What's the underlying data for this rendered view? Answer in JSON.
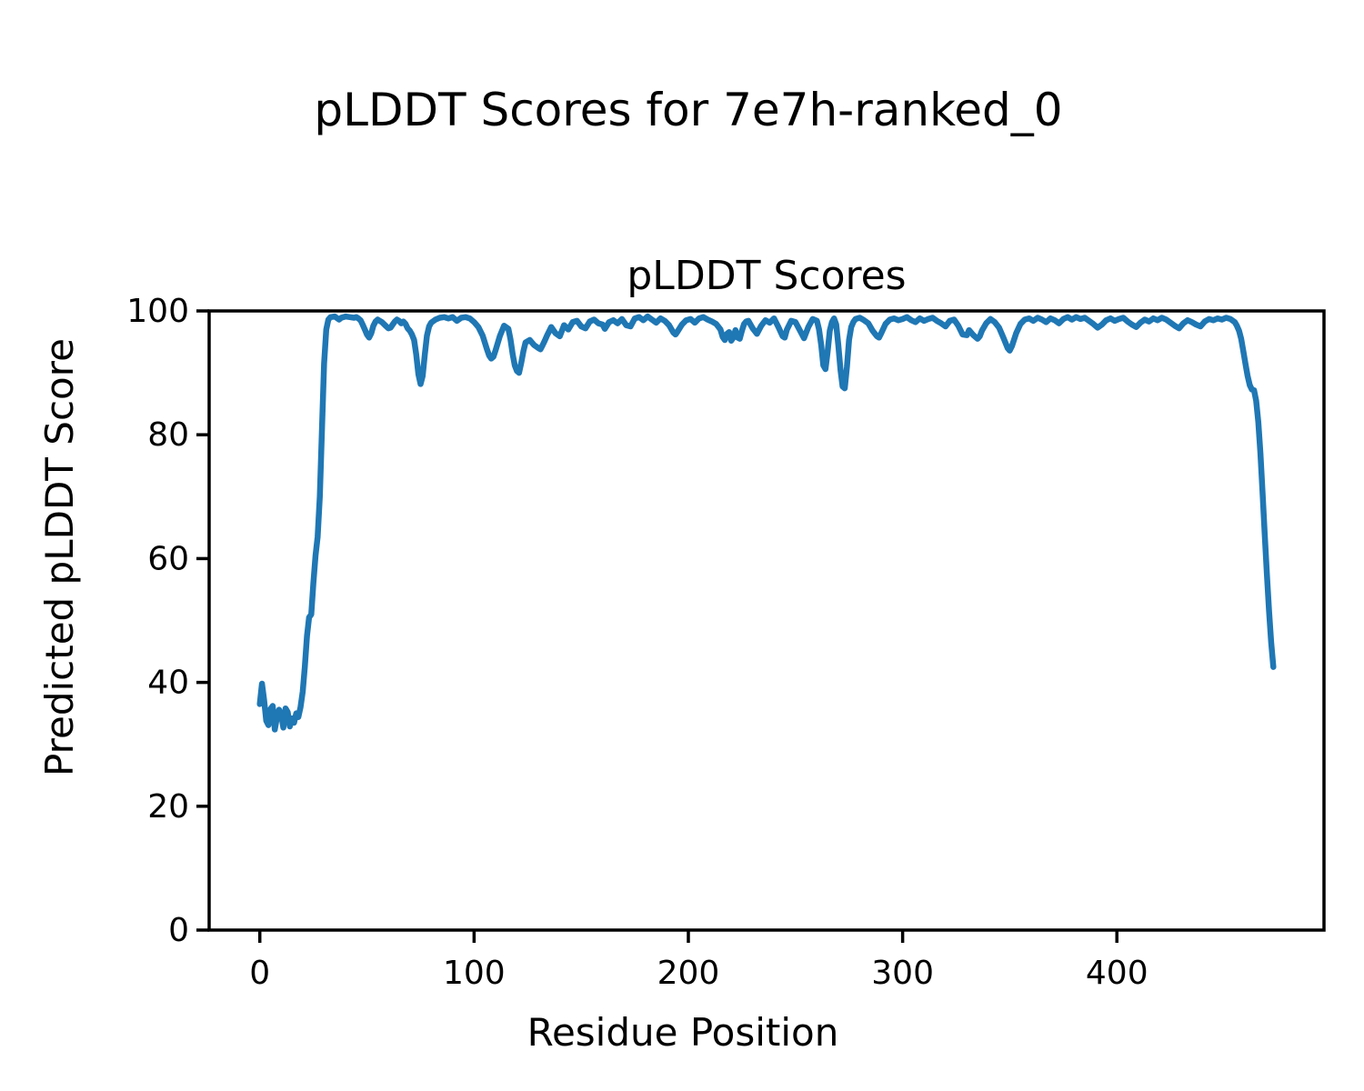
{
  "chart_data": {
    "type": "line",
    "suptitle": "pLDDT Scores for 7e7h-ranked_0",
    "title": "pLDDT Scores",
    "xlabel": "Residue Position",
    "ylabel": "Predicted pLDDT Score",
    "xlim": [
      -23.65,
      496.65
    ],
    "ylim": [
      0,
      100
    ],
    "xticks": [
      0,
      100,
      200,
      300,
      400
    ],
    "yticks": [
      0,
      20,
      40,
      60,
      80,
      100
    ],
    "grid": false,
    "legend": "none",
    "background": "#ffffff",
    "axis_color": "#000000",
    "series": [
      {
        "name": "pLDDT",
        "color": "#1f77b4",
        "line_width": 6.5,
        "points": [
          [
            0,
            36.5
          ],
          [
            1,
            39.8
          ],
          [
            2,
            37.2
          ],
          [
            3,
            33.8
          ],
          [
            4,
            33.1
          ],
          [
            5,
            35.7
          ],
          [
            6,
            36.2
          ],
          [
            7,
            32.4
          ],
          [
            8,
            34.4
          ],
          [
            9,
            35.6
          ],
          [
            10,
            34.7
          ],
          [
            11,
            32.7
          ],
          [
            12,
            35.8
          ],
          [
            13,
            35.2
          ],
          [
            14,
            32.9
          ],
          [
            15,
            34.2
          ],
          [
            16,
            33.5
          ],
          [
            17,
            35.0
          ],
          [
            18,
            34.4
          ],
          [
            19,
            36.0
          ],
          [
            20,
            38.5
          ],
          [
            21,
            42.5
          ],
          [
            22,
            47.5
          ],
          [
            23,
            50.5
          ],
          [
            24,
            51.0
          ],
          [
            25,
            56.0
          ],
          [
            26,
            60.5
          ],
          [
            27,
            63.5
          ],
          [
            28,
            70.0
          ],
          [
            29,
            81.0
          ],
          [
            30,
            91.5
          ],
          [
            31,
            97.0
          ],
          [
            32,
            98.6
          ],
          [
            33,
            99.0
          ],
          [
            35,
            99.1
          ],
          [
            37,
            98.6
          ],
          [
            38,
            98.9
          ],
          [
            40,
            99.1
          ],
          [
            42,
            99.0
          ],
          [
            44,
            98.9
          ],
          [
            45,
            99.0
          ],
          [
            46,
            98.8
          ],
          [
            47,
            98.5
          ],
          [
            48,
            97.8
          ],
          [
            49,
            97.0
          ],
          [
            50,
            96.2
          ],
          [
            51,
            95.7
          ],
          [
            52,
            96.4
          ],
          [
            53,
            97.6
          ],
          [
            54,
            98.3
          ],
          [
            55,
            98.6
          ],
          [
            57,
            98.2
          ],
          [
            59,
            97.5
          ],
          [
            60,
            97.2
          ],
          [
            61,
            97.3
          ],
          [
            62,
            97.8
          ],
          [
            63,
            98.3
          ],
          [
            64,
            98.6
          ],
          [
            65,
            98.4
          ],
          [
            66,
            98.0
          ],
          [
            67,
            98.3
          ],
          [
            68,
            97.9
          ],
          [
            69,
            97.2
          ],
          [
            70,
            96.8
          ],
          [
            71,
            96.2
          ],
          [
            72,
            95.3
          ],
          [
            73,
            93.0
          ],
          [
            74,
            89.8
          ],
          [
            75,
            88.2
          ],
          [
            76,
            89.5
          ],
          [
            77,
            93.0
          ],
          [
            78,
            96.0
          ],
          [
            79,
            97.5
          ],
          [
            80,
            98.1
          ],
          [
            82,
            98.6
          ],
          [
            84,
            98.9
          ],
          [
            86,
            99.0
          ],
          [
            88,
            98.8
          ],
          [
            90,
            99.0
          ],
          [
            92,
            98.4
          ],
          [
            94,
            98.9
          ],
          [
            96,
            99.0
          ],
          [
            98,
            98.8
          ],
          [
            100,
            98.2
          ],
          [
            102,
            97.4
          ],
          [
            104,
            96.0
          ],
          [
            106,
            93.8
          ],
          [
            107,
            92.8
          ],
          [
            108,
            92.3
          ],
          [
            109,
            92.6
          ],
          [
            110,
            93.6
          ],
          [
            112,
            95.9
          ],
          [
            114,
            97.6
          ],
          [
            116,
            97.1
          ],
          [
            117,
            95.4
          ],
          [
            118,
            93.0
          ],
          [
            119,
            91.2
          ],
          [
            120,
            90.3
          ],
          [
            121,
            90.0
          ],
          [
            122,
            91.6
          ],
          [
            123,
            93.5
          ],
          [
            124,
            94.9
          ],
          [
            126,
            95.3
          ],
          [
            128,
            94.5
          ],
          [
            130,
            94.0
          ],
          [
            131,
            93.8
          ],
          [
            132,
            94.5
          ],
          [
            133,
            95.2
          ],
          [
            134,
            96.0
          ],
          [
            136,
            97.4
          ],
          [
            138,
            96.4
          ],
          [
            140,
            95.9
          ],
          [
            142,
            97.7
          ],
          [
            144,
            97.0
          ],
          [
            146,
            98.2
          ],
          [
            148,
            98.4
          ],
          [
            150,
            97.5
          ],
          [
            152,
            97.2
          ],
          [
            154,
            98.3
          ],
          [
            156,
            98.6
          ],
          [
            158,
            98.0
          ],
          [
            160,
            97.8
          ],
          [
            161,
            97.1
          ],
          [
            163,
            98.2
          ],
          [
            165,
            98.5
          ],
          [
            167,
            98.0
          ],
          [
            169,
            98.7
          ],
          [
            171,
            97.7
          ],
          [
            173,
            97.5
          ],
          [
            175,
            98.8
          ],
          [
            177,
            99.0
          ],
          [
            179,
            98.5
          ],
          [
            181,
            99.1
          ],
          [
            183,
            98.6
          ],
          [
            185,
            98.1
          ],
          [
            187,
            98.8
          ],
          [
            189,
            98.4
          ],
          [
            191,
            97.7
          ],
          [
            193,
            96.5
          ],
          [
            194,
            96.2
          ],
          [
            195,
            96.7
          ],
          [
            197,
            97.8
          ],
          [
            199,
            98.5
          ],
          [
            201,
            98.7
          ],
          [
            203,
            98.1
          ],
          [
            205,
            98.8
          ],
          [
            207,
            99.0
          ],
          [
            209,
            98.6
          ],
          [
            211,
            98.3
          ],
          [
            213,
            97.9
          ],
          [
            215,
            97.0
          ],
          [
            216,
            95.8
          ],
          [
            217,
            95.3
          ],
          [
            218,
            96.3
          ],
          [
            219,
            96.6
          ],
          [
            220,
            95.2
          ],
          [
            221,
            95.7
          ],
          [
            222,
            96.9
          ],
          [
            223,
            95.7
          ],
          [
            224,
            95.5
          ],
          [
            225,
            96.8
          ],
          [
            226,
            97.9
          ],
          [
            227,
            98.3
          ],
          [
            228,
            98.4
          ],
          [
            230,
            97.2
          ],
          [
            232,
            96.3
          ],
          [
            234,
            97.6
          ],
          [
            236,
            98.5
          ],
          [
            238,
            98.1
          ],
          [
            240,
            98.8
          ],
          [
            242,
            97.4
          ],
          [
            244,
            95.9
          ],
          [
            245,
            95.7
          ],
          [
            246,
            97.0
          ],
          [
            248,
            98.4
          ],
          [
            250,
            98.2
          ],
          [
            252,
            96.9
          ],
          [
            254,
            95.6
          ],
          [
            256,
            97.4
          ],
          [
            258,
            98.7
          ],
          [
            260,
            98.4
          ],
          [
            261,
            97.0
          ],
          [
            262,
            94.5
          ],
          [
            263,
            91.2
          ],
          [
            264,
            90.6
          ],
          [
            265,
            93.5
          ],
          [
            266,
            96.8
          ],
          [
            267,
            98.2
          ],
          [
            268,
            98.8
          ],
          [
            269,
            97.8
          ],
          [
            270,
            94.5
          ],
          [
            271,
            90.5
          ],
          [
            272,
            87.8
          ],
          [
            273,
            87.5
          ],
          [
            274,
            91.0
          ],
          [
            275,
            95.3
          ],
          [
            276,
            97.4
          ],
          [
            277,
            98.2
          ],
          [
            278,
            98.7
          ],
          [
            280,
            98.9
          ],
          [
            282,
            98.5
          ],
          [
            284,
            98.0
          ],
          [
            286,
            96.8
          ],
          [
            288,
            95.9
          ],
          [
            289,
            95.7
          ],
          [
            290,
            96.4
          ],
          [
            292,
            97.9
          ],
          [
            294,
            98.6
          ],
          [
            296,
            98.8
          ],
          [
            298,
            98.5
          ],
          [
            300,
            98.7
          ],
          [
            302,
            99.0
          ],
          [
            304,
            98.5
          ],
          [
            306,
            98.2
          ],
          [
            308,
            98.8
          ],
          [
            310,
            98.4
          ],
          [
            312,
            98.7
          ],
          [
            314,
            98.9
          ],
          [
            316,
            98.4
          ],
          [
            318,
            98.0
          ],
          [
            320,
            97.5
          ],
          [
            322,
            98.4
          ],
          [
            324,
            98.6
          ],
          [
            326,
            97.6
          ],
          [
            328,
            96.2
          ],
          [
            330,
            96.1
          ],
          [
            331,
            96.9
          ],
          [
            333,
            96.1
          ],
          [
            335,
            95.5
          ],
          [
            336,
            95.9
          ],
          [
            337,
            96.8
          ],
          [
            339,
            98.0
          ],
          [
            341,
            98.7
          ],
          [
            343,
            98.2
          ],
          [
            345,
            97.3
          ],
          [
            347,
            95.7
          ],
          [
            349,
            94.0
          ],
          [
            350,
            93.6
          ],
          [
            351,
            94.3
          ],
          [
            353,
            96.4
          ],
          [
            355,
            97.9
          ],
          [
            357,
            98.6
          ],
          [
            359,
            98.8
          ],
          [
            361,
            98.4
          ],
          [
            363,
            98.9
          ],
          [
            365,
            98.6
          ],
          [
            367,
            98.2
          ],
          [
            369,
            98.8
          ],
          [
            371,
            98.5
          ],
          [
            373,
            98.0
          ],
          [
            375,
            98.7
          ],
          [
            377,
            99.0
          ],
          [
            379,
            98.6
          ],
          [
            381,
            99.0
          ],
          [
            383,
            98.7
          ],
          [
            385,
            98.9
          ],
          [
            387,
            98.4
          ],
          [
            389,
            97.9
          ],
          [
            391,
            97.3
          ],
          [
            393,
            97.8
          ],
          [
            395,
            98.5
          ],
          [
            397,
            98.8
          ],
          [
            399,
            98.4
          ],
          [
            401,
            98.7
          ],
          [
            403,
            98.9
          ],
          [
            405,
            98.3
          ],
          [
            407,
            97.8
          ],
          [
            409,
            97.4
          ],
          [
            411,
            98.1
          ],
          [
            413,
            98.6
          ],
          [
            415,
            98.3
          ],
          [
            417,
            98.8
          ],
          [
            419,
            98.5
          ],
          [
            421,
            98.9
          ],
          [
            423,
            98.6
          ],
          [
            425,
            98.1
          ],
          [
            427,
            97.6
          ],
          [
            429,
            97.2
          ],
          [
            431,
            98.0
          ],
          [
            433,
            98.5
          ],
          [
            435,
            98.2
          ],
          [
            437,
            97.8
          ],
          [
            439,
            97.5
          ],
          [
            441,
            98.3
          ],
          [
            443,
            98.7
          ],
          [
            445,
            98.5
          ],
          [
            447,
            98.8
          ],
          [
            449,
            98.6
          ],
          [
            451,
            98.9
          ],
          [
            453,
            98.7
          ],
          [
            455,
            98.2
          ],
          [
            456,
            97.6
          ],
          [
            457,
            96.8
          ],
          [
            458,
            95.5
          ],
          [
            459,
            93.5
          ],
          [
            460,
            91.5
          ],
          [
            461,
            89.5
          ],
          [
            462,
            88.0
          ],
          [
            463,
            87.3
          ],
          [
            464,
            87.2
          ],
          [
            465,
            85.5
          ],
          [
            466,
            82.0
          ],
          [
            467,
            77.0
          ],
          [
            468,
            70.5
          ],
          [
            469,
            64.0
          ],
          [
            470,
            57.5
          ],
          [
            471,
            51.5
          ],
          [
            472,
            46.5
          ],
          [
            473,
            42.5
          ]
        ]
      }
    ]
  }
}
